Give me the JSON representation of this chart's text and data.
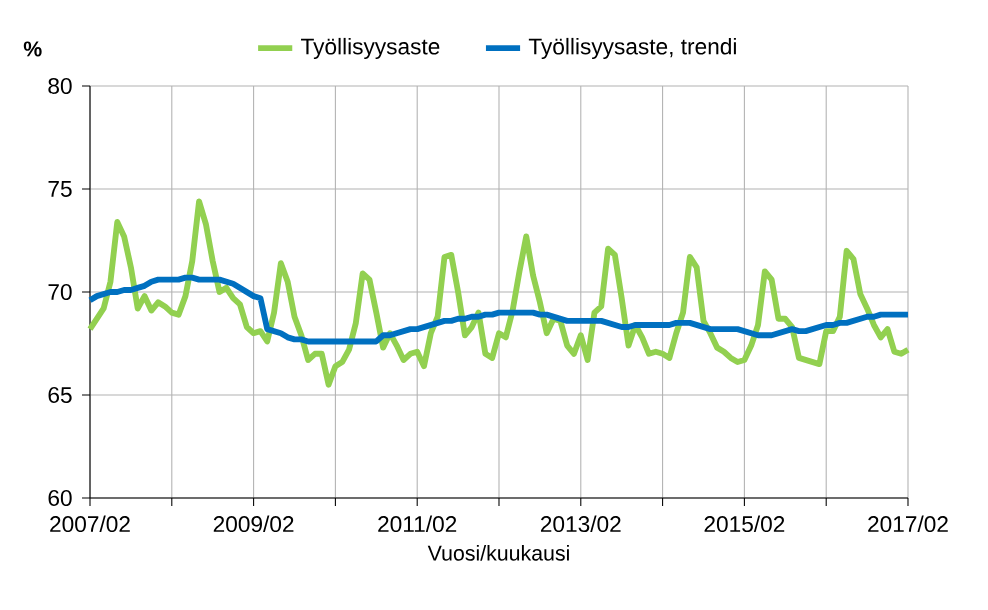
{
  "chart_data": {
    "type": "line",
    "ylabel": "%",
    "xlabel": "Vuosi/kuukausi",
    "x": [
      "2007-02",
      "2007-03",
      "2007-04",
      "2007-05",
      "2007-06",
      "2007-07",
      "2007-08",
      "2007-09",
      "2007-10",
      "2007-11",
      "2007-12",
      "2008-01",
      "2008-02",
      "2008-03",
      "2008-04",
      "2008-05",
      "2008-06",
      "2008-07",
      "2008-08",
      "2008-09",
      "2008-10",
      "2008-11",
      "2008-12",
      "2009-01",
      "2009-02",
      "2009-03",
      "2009-04",
      "2009-05",
      "2009-06",
      "2009-07",
      "2009-08",
      "2009-09",
      "2009-10",
      "2009-11",
      "2009-12",
      "2010-01",
      "2010-02",
      "2010-03",
      "2010-04",
      "2010-05",
      "2010-06",
      "2010-07",
      "2010-08",
      "2010-09",
      "2010-10",
      "2010-11",
      "2010-12",
      "2011-01",
      "2011-02",
      "2011-03",
      "2011-04",
      "2011-05",
      "2011-06",
      "2011-07",
      "2011-08",
      "2011-09",
      "2011-10",
      "2011-11",
      "2011-12",
      "2012-01",
      "2012-02",
      "2012-03",
      "2012-04",
      "2012-05",
      "2012-06",
      "2012-07",
      "2012-08",
      "2012-09",
      "2012-10",
      "2012-11",
      "2012-12",
      "2013-01",
      "2013-02",
      "2013-03",
      "2013-04",
      "2013-05",
      "2013-06",
      "2013-07",
      "2013-08",
      "2013-09",
      "2013-10",
      "2013-11",
      "2013-12",
      "2014-01",
      "2014-02",
      "2014-03",
      "2014-04",
      "2014-05",
      "2014-06",
      "2014-07",
      "2014-08",
      "2014-09",
      "2014-10",
      "2014-11",
      "2014-12",
      "2015-01",
      "2015-02",
      "2015-03",
      "2015-04",
      "2015-05",
      "2015-06",
      "2015-07",
      "2015-08",
      "2015-09",
      "2015-10",
      "2015-11",
      "2015-12",
      "2016-01",
      "2016-02",
      "2016-03",
      "2016-04",
      "2016-05",
      "2016-06",
      "2016-07",
      "2016-08",
      "2016-09",
      "2016-10",
      "2016-11",
      "2016-12",
      "2017-01",
      "2017-02"
    ],
    "series": [
      {
        "name": "Työllisyysaste",
        "color": "#92d050",
        "values": [
          68.2,
          68.7,
          69.2,
          70.5,
          73.4,
          72.7,
          71.2,
          69.2,
          69.8,
          69.1,
          69.5,
          69.3,
          69.0,
          68.9,
          69.8,
          71.5,
          74.4,
          73.3,
          71.5,
          70.0,
          70.2,
          69.7,
          69.4,
          68.3,
          68.0,
          68.1,
          67.6,
          69.0,
          71.4,
          70.5,
          68.8,
          67.9,
          66.7,
          67.0,
          67.0,
          65.5,
          66.4,
          66.6,
          67.2,
          68.5,
          70.9,
          70.6,
          69.0,
          67.3,
          68.0,
          67.4,
          66.7,
          67.0,
          67.1,
          66.4,
          68.0,
          68.8,
          71.7,
          71.8,
          70.0,
          67.9,
          68.3,
          69.0,
          67.0,
          66.8,
          68.0,
          67.8,
          69.1,
          71.0,
          72.7,
          70.8,
          69.5,
          68.0,
          68.7,
          68.6,
          67.4,
          67.0,
          67.9,
          66.7,
          69.0,
          69.3,
          72.1,
          71.8,
          69.7,
          67.4,
          68.4,
          67.8,
          67.0,
          67.1,
          67.0,
          66.8,
          68.0,
          69.0,
          71.7,
          71.2,
          68.6,
          68.0,
          67.3,
          67.1,
          66.8,
          66.6,
          66.7,
          67.4,
          68.4,
          71.0,
          70.6,
          68.7,
          68.7,
          68.3,
          66.8,
          66.7,
          66.6,
          66.5,
          68.1,
          68.1,
          68.8,
          72.0,
          71.6,
          69.9,
          69.2,
          68.4,
          67.8,
          68.2,
          67.1,
          67.0,
          67.2
        ]
      },
      {
        "name": "Työllisyysaste, trendi",
        "color": "#0070c0",
        "values": [
          69.6,
          69.8,
          69.9,
          70.0,
          70.0,
          70.1,
          70.1,
          70.2,
          70.3,
          70.5,
          70.6,
          70.6,
          70.6,
          70.6,
          70.7,
          70.7,
          70.6,
          70.6,
          70.6,
          70.6,
          70.5,
          70.4,
          70.2,
          70.0,
          69.8,
          69.7,
          68.2,
          68.1,
          68.0,
          67.8,
          67.7,
          67.7,
          67.6,
          67.6,
          67.6,
          67.6,
          67.6,
          67.6,
          67.6,
          67.6,
          67.6,
          67.6,
          67.6,
          67.9,
          67.9,
          68.0,
          68.1,
          68.2,
          68.2,
          68.3,
          68.4,
          68.5,
          68.6,
          68.6,
          68.7,
          68.7,
          68.8,
          68.8,
          68.9,
          68.9,
          69.0,
          69.0,
          69.0,
          69.0,
          69.0,
          69.0,
          68.9,
          68.9,
          68.8,
          68.7,
          68.6,
          68.6,
          68.6,
          68.6,
          68.6,
          68.6,
          68.5,
          68.4,
          68.3,
          68.3,
          68.4,
          68.4,
          68.4,
          68.4,
          68.4,
          68.4,
          68.5,
          68.5,
          68.5,
          68.4,
          68.3,
          68.2,
          68.2,
          68.2,
          68.2,
          68.2,
          68.1,
          68.0,
          67.9,
          67.9,
          67.9,
          68.0,
          68.1,
          68.2,
          68.1,
          68.1,
          68.2,
          68.3,
          68.4,
          68.4,
          68.5,
          68.5,
          68.6,
          68.7,
          68.8,
          68.8,
          68.9,
          68.9,
          68.9,
          68.9,
          68.9
        ]
      }
    ],
    "xlim": [
      "2007-02",
      "2017-02"
    ],
    "xticks": [
      {
        "value": "2007-02",
        "label": "2007/02"
      },
      {
        "value": "2008-02",
        "label": null
      },
      {
        "value": "2009-02",
        "label": "2009/02"
      },
      {
        "value": "2010-02",
        "label": null
      },
      {
        "value": "2011-02",
        "label": "2011/02"
      },
      {
        "value": "2012-02",
        "label": null
      },
      {
        "value": "2013-02",
        "label": "2013/02"
      },
      {
        "value": "2014-02",
        "label": null
      },
      {
        "value": "2015-02",
        "label": "2015/02"
      },
      {
        "value": "2016-02",
        "label": null
      },
      {
        "value": "2017-02",
        "label": "2017/02"
      }
    ],
    "ylim": [
      60,
      80
    ],
    "yticks": [
      60,
      65,
      70,
      75,
      80
    ],
    "grid": true,
    "legend": "top",
    "line_style": "solid",
    "marker": "none"
  }
}
